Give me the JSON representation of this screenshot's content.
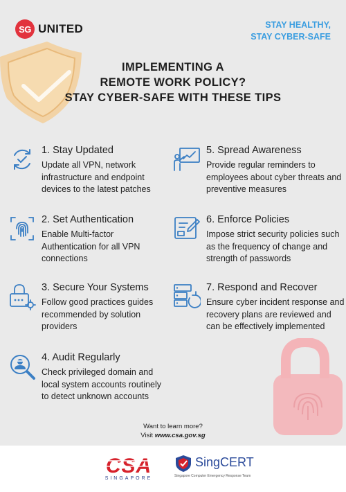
{
  "header": {
    "logo_mark": "SG",
    "logo_text": "UNITED",
    "tagline": [
      "STAY HEALTHY,",
      "STAY CYBER-SAFE"
    ]
  },
  "title": [
    "IMPLEMENTING A",
    "REMOTE WORK POLICY?",
    "STAY CYBER-SAFE WITH THESE TIPS"
  ],
  "tips": [
    {
      "title": "1. Stay Updated",
      "body": "Update all VPN, network infrastructure and endpoint devices to the latest patches",
      "icon": "refresh-check-icon"
    },
    {
      "title": "2. Set Authentication",
      "body": "Enable Multi-factor Authentication for all VPN connections",
      "icon": "fingerprint-icon"
    },
    {
      "title": "3. Secure Your Systems",
      "body": "Follow good practices guides recommended by solution providers",
      "icon": "lock-gear-icon"
    },
    {
      "title": "4. Audit Regularly",
      "body": "Check privileged domain and local system accounts routinely to detect unknown accounts",
      "icon": "magnifier-user-icon"
    },
    {
      "title": "5. Spread Awareness",
      "body": "Provide regular reminders to employees about cyber threats and preventive measures",
      "icon": "presentation-icon"
    },
    {
      "title": "6. Enforce Policies",
      "body": "Impose strict security policies such as the frequency of change and strength of passwords",
      "icon": "policy-document-icon"
    },
    {
      "title": "7. Respond and Recover",
      "body": "Ensure cyber incident response and recovery plans are reviewed and can be effectively implemented",
      "icon": "server-restore-icon"
    }
  ],
  "learn_more": {
    "line1": "Want to learn more?",
    "prefix": "Visit ",
    "url": "www.csa.gov.sg"
  },
  "footer": {
    "csa_text": "CSA",
    "csa_sub": "SINGAPORE",
    "singcert_name": "SingCERT",
    "singcert_sub": "Singapore Computer Emergency Response Team"
  },
  "colors": {
    "accent_blue": "#3a9de0",
    "brand_red": "#e2333d",
    "icon_blue": "#3b7fc4"
  }
}
